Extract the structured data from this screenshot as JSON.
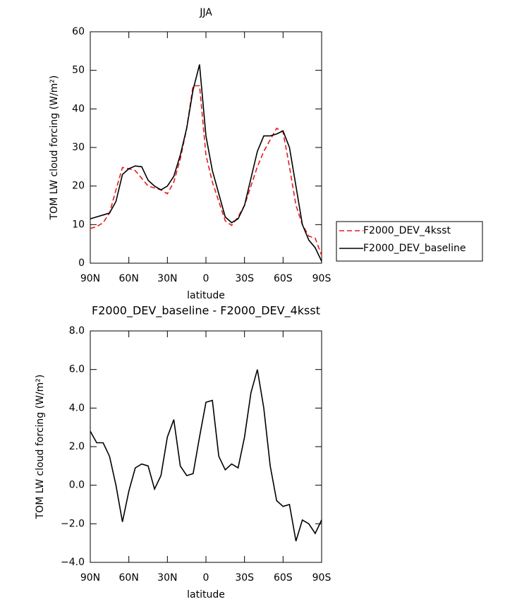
{
  "chart_data": [
    {
      "type": "line",
      "title": "JJA",
      "xlabel": "latitude",
      "ylabel": "TOM LW cloud forcing (W/m²)",
      "x": [
        90,
        85,
        80,
        75,
        70,
        65,
        60,
        55,
        50,
        45,
        40,
        35,
        30,
        25,
        20,
        15,
        10,
        5,
        0,
        -5,
        -10,
        -15,
        -20,
        -25,
        -30,
        -35,
        -40,
        -45,
        -50,
        -55,
        -60,
        -65,
        -70,
        -75,
        -80,
        -85,
        -90
      ],
      "xlim": [
        90,
        -90
      ],
      "xticks": [
        {
          "value": 90,
          "label": "90N"
        },
        {
          "value": 60,
          "label": "60N"
        },
        {
          "value": 30,
          "label": "30N"
        },
        0,
        {
          "value": -30,
          "label": "30S"
        },
        {
          "value": -60,
          "label": "60S"
        },
        {
          "value": -90,
          "label": "90S"
        }
      ],
      "ylim": [
        0,
        60
      ],
      "yticks": [
        0,
        10,
        20,
        30,
        40,
        50,
        60
      ],
      "legend": "right",
      "series": [
        {
          "name": "F2000_DEV_4ksst",
          "color": "#e8191e",
          "dash": true,
          "values": [
            9,
            9.5,
            10.5,
            13,
            19,
            24.8,
            24.5,
            24,
            22,
            20,
            19.5,
            19,
            18,
            21,
            27,
            35,
            46,
            46,
            28,
            21,
            16,
            11,
            9.8,
            12,
            15,
            20,
            25,
            29,
            32,
            35,
            34,
            25,
            15,
            10,
            7,
            6.5,
            2
          ]
        },
        {
          "name": "F2000_DEV_baseline",
          "color": "#000000",
          "dash": false,
          "values": [
            11.5,
            12,
            12.5,
            13,
            16,
            23,
            24.5,
            25.2,
            25,
            21.5,
            20,
            19,
            20,
            22.5,
            28,
            35,
            45,
            51.5,
            33,
            24,
            18,
            12,
            10.5,
            11.5,
            15,
            22,
            29,
            33,
            33,
            33.5,
            34.3,
            30,
            20,
            10,
            6,
            4,
            0.5
          ]
        }
      ]
    },
    {
      "type": "line",
      "title": "F2000_DEV_baseline - F2000_DEV_4ksst",
      "xlabel": "latitude",
      "ylabel": "TOM LW cloud forcing (W/m²)",
      "x": [
        90,
        85,
        80,
        75,
        70,
        65,
        60,
        55,
        50,
        45,
        40,
        35,
        30,
        25,
        20,
        15,
        10,
        5,
        0,
        -5,
        -10,
        -15,
        -20,
        -25,
        -30,
        -35,
        -40,
        -45,
        -50,
        -55,
        -60,
        -65,
        -70,
        -75,
        -80,
        -85,
        -90
      ],
      "xlim": [
        90,
        -90
      ],
      "xticks": [
        {
          "value": 90,
          "label": "90N"
        },
        {
          "value": 60,
          "label": "60N"
        },
        {
          "value": 30,
          "label": "30N"
        },
        0,
        {
          "value": -30,
          "label": "30S"
        },
        {
          "value": -60,
          "label": "60S"
        },
        {
          "value": -90,
          "label": "90S"
        }
      ],
      "ylim": [
        -4,
        8
      ],
      "yticks": [
        {
          "value": -4,
          "label": "−4.0"
        },
        {
          "value": -2,
          "label": "−2.0"
        },
        {
          "value": 0,
          "label": "0.0"
        },
        {
          "value": 2,
          "label": "2.0"
        },
        {
          "value": 4,
          "label": "4.0"
        },
        {
          "value": 6,
          "label": "6.0"
        },
        {
          "value": 8,
          "label": "8.0"
        }
      ],
      "series": [
        {
          "color": "#000000",
          "dash": false,
          "values": [
            2.8,
            2.2,
            2.2,
            1.5,
            0,
            -1.9,
            -0.3,
            0.9,
            1.1,
            1.0,
            -0.2,
            0.5,
            2.5,
            3.4,
            1.0,
            0.5,
            0.6,
            2.5,
            4.3,
            4.4,
            1.5,
            0.8,
            1.1,
            0.9,
            2.5,
            4.8,
            6.0,
            4.0,
            1.0,
            -0.8,
            -1.1,
            -1.0,
            -2.9,
            -1.8,
            -2.0,
            -2.5,
            -1.8
          ]
        }
      ]
    }
  ]
}
